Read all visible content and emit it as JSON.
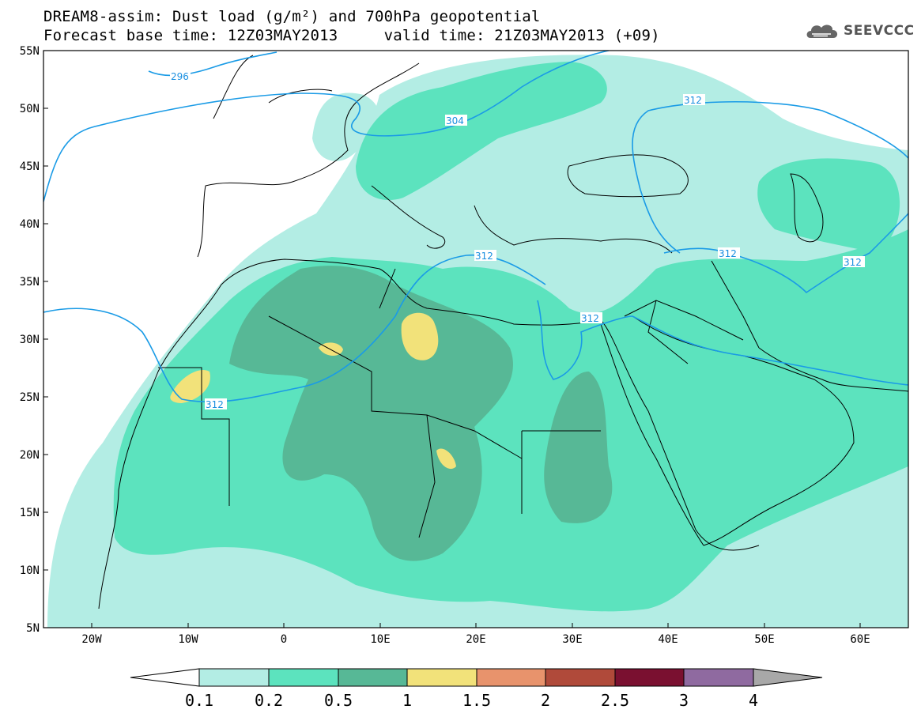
{
  "header": {
    "line1": "DREAM8-assim: Dust load (g/m²) and 700hPa geopotential",
    "line2": "Forecast base time: 12Z03MAY2013     valid time: 21Z03MAY2013 (+09)"
  },
  "logo": {
    "text": "SEEVCCC",
    "icon": "cloud-logo-icon"
  },
  "map": {
    "lat_labels": [
      "55N",
      "50N",
      "45N",
      "40N",
      "35N",
      "30N",
      "25N",
      "20N",
      "15N",
      "10N",
      "5N"
    ],
    "lon_labels": [
      "20W",
      "10W",
      "0",
      "10E",
      "20E",
      "30E",
      "40E",
      "50E",
      "60E"
    ],
    "extent": {
      "lon": [
        -25,
        65
      ],
      "lat": [
        5,
        55
      ]
    },
    "contour_color": "#1a9be6",
    "contour_labels": [
      "296",
      "304",
      "312",
      "312",
      "312",
      "312",
      "312",
      "312"
    ]
  },
  "colorbar": {
    "tick_labels": [
      "0.1",
      "0.2",
      "0.5",
      "1",
      "1.5",
      "2",
      "2.5",
      "3",
      "4"
    ],
    "colors": [
      "#b3ede4",
      "#5ce3be",
      "#57b896",
      "#f2e27a",
      "#e8936c",
      "#b04a3a",
      "#7a1030",
      "#8f6aa0",
      "#a8a8a8"
    ]
  }
}
